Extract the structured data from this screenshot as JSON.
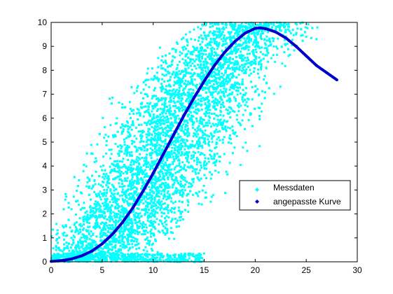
{
  "chart_data": {
    "type": "scatter",
    "title": "",
    "xlabel": "",
    "ylabel": "",
    "xlim": [
      0,
      30
    ],
    "ylim": [
      0,
      10
    ],
    "xticks": [
      0,
      5,
      10,
      15,
      20,
      25,
      30
    ],
    "yticks": [
      0,
      1,
      2,
      3,
      4,
      5,
      6,
      7,
      8,
      9,
      10
    ],
    "grid": false,
    "legend_position": "right",
    "series": [
      {
        "name": "Messdaten",
        "kind": "scatter",
        "color": "#00FFFF",
        "marker": "dot",
        "point_count_note": "dense band of measured points following the fitted curve",
        "x": [
          0.3,
          0.8,
          1.5,
          2.0,
          2.6,
          3.0,
          3.5,
          4.0,
          4.4,
          4.8,
          5.2,
          5.6,
          6.0,
          6.4,
          6.8,
          7.2,
          7.6,
          8.0,
          8.4,
          8.8,
          9.2,
          9.6,
          10.0,
          10.4,
          10.8,
          11.2,
          11.6,
          12.0,
          12.4,
          12.8,
          13.2,
          13.6,
          14.0,
          14.4,
          14.8,
          15.2,
          15.6,
          16.0,
          16.4,
          16.8,
          17.2,
          17.6,
          18.0,
          18.4,
          18.8,
          19.2,
          19.6,
          20.0,
          20.4,
          20.8,
          21.2,
          21.6,
          22.0,
          22.5,
          23.0,
          23.5,
          24.0,
          24.5,
          25.0,
          25.5,
          26.0
        ],
        "y": [
          0.3,
          0.5,
          0.8,
          1.0,
          1.3,
          1.5,
          1.8,
          2.1,
          2.4,
          2.7,
          3.0,
          3.4,
          3.8,
          4.2,
          4.6,
          5.0,
          5.4,
          5.8,
          6.2,
          6.6,
          7.0,
          7.3,
          7.6,
          7.9,
          8.2,
          8.4,
          8.7,
          8.9,
          9.1,
          9.3,
          9.5,
          9.6,
          9.7,
          9.8,
          9.9,
          9.95,
          9.95,
          9.95,
          9.95,
          9.95,
          9.9,
          9.9,
          9.9,
          9.85,
          9.85,
          9.8,
          9.8,
          9.8,
          9.8,
          9.75,
          9.75,
          9.7,
          9.7,
          9.65,
          9.6,
          9.55,
          9.5,
          9.45,
          9.4,
          9.35,
          9.3
        ]
      },
      {
        "name": "angepasste Kurve",
        "kind": "line",
        "color": "#0000CC",
        "x": [
          0,
          1,
          2,
          3,
          4,
          5,
          6,
          7,
          8,
          9,
          10,
          11,
          12,
          13,
          14,
          15,
          16,
          17,
          18,
          19,
          20,
          20.5,
          21,
          22,
          23,
          24,
          25,
          26,
          27,
          28
        ],
        "y": [
          0.02,
          0.05,
          0.12,
          0.25,
          0.45,
          0.75,
          1.15,
          1.65,
          2.25,
          2.95,
          3.7,
          4.5,
          5.3,
          6.1,
          6.85,
          7.55,
          8.2,
          8.75,
          9.2,
          9.55,
          9.75,
          9.77,
          9.74,
          9.6,
          9.35,
          9.0,
          8.6,
          8.2,
          7.9,
          7.6
        ]
      }
    ]
  },
  "legend": {
    "entries": [
      "Messdaten",
      "angepasste Kurve"
    ]
  }
}
